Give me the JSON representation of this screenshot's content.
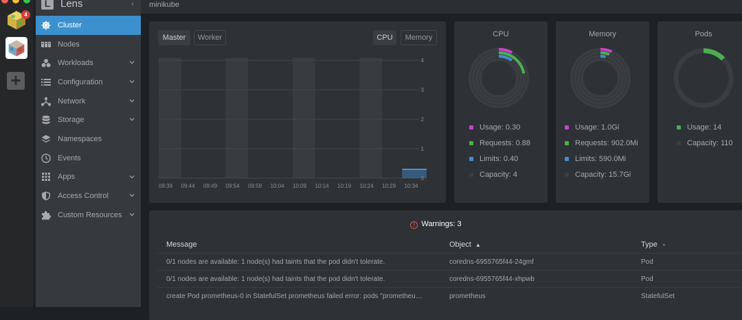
{
  "window": {
    "title": "minikube"
  },
  "colors": {
    "accent": "#3d90ce",
    "usage": "#c644c8",
    "requests": "#4caf50",
    "limits": "#3d8fd1",
    "capacity": "#3a3d41",
    "warning": "#e0584e"
  },
  "app": {
    "name": "Lens",
    "logo_letter": "L"
  },
  "rail": {
    "badge_count": "4"
  },
  "sidebar": {
    "items": [
      {
        "label": "Cluster",
        "icon": "helm-wheel-icon"
      },
      {
        "label": "Nodes",
        "icon": "nodes-icon"
      },
      {
        "label": "Workloads",
        "icon": "workloads-icon"
      },
      {
        "label": "Configuration",
        "icon": "list-icon"
      },
      {
        "label": "Network",
        "icon": "network-icon"
      },
      {
        "label": "Storage",
        "icon": "database-icon"
      },
      {
        "label": "Namespaces",
        "icon": "layers-icon"
      },
      {
        "label": "Events",
        "icon": "clock-icon"
      },
      {
        "label": "Apps",
        "icon": "apps-grid-icon"
      },
      {
        "label": "Access Control",
        "icon": "shield-icon"
      },
      {
        "label": "Custom Resources",
        "icon": "puzzle-icon"
      }
    ]
  },
  "chart_panel": {
    "node_tabs": [
      "Master",
      "Worker"
    ],
    "metric_tabs": [
      "CPU",
      "Memory"
    ]
  },
  "chart_data": {
    "type": "area",
    "x": [
      "09:39",
      "09:44",
      "09:49",
      "09:54",
      "09:59",
      "10:04",
      "10:09",
      "10:14",
      "10:19",
      "10:24",
      "10:29",
      "10:34"
    ],
    "yticks": [
      "0",
      "1",
      "2",
      "3",
      "4"
    ],
    "ylim": [
      0,
      4
    ],
    "series": [
      {
        "points": [
          [
            10.9,
            0.3
          ],
          [
            12.3,
            0.3
          ]
        ]
      }
    ]
  },
  "metrics": {
    "cpu": {
      "title": "CPU",
      "usage": "Usage: 0.30",
      "requests": "Requests: 0.88",
      "limits": "Limits: 0.40",
      "capacity": "Capacity: 4",
      "fractions": {
        "usage": 0.075,
        "requests": 0.22,
        "limits": 0.1
      }
    },
    "memory": {
      "title": "Memory",
      "usage": "Usage: 1.0Gi",
      "requests": "Requests: 902.0Mi",
      "limits": "Limits: 590.0Mi",
      "fractions": {
        "usage": 0.064,
        "requests": 0.056,
        "limits": 0.037
      },
      "capacity": "Capacity: 15.7Gi"
    },
    "pods": {
      "title": "Pods",
      "usage": "Usage: 14",
      "capacity": "Capacity: 110",
      "fractions": {
        "usage": 0.127
      }
    }
  },
  "warnings": {
    "title": "Warnings: 3",
    "columns": {
      "message": "Message",
      "object": "Object",
      "type": "Type"
    },
    "rows": [
      {
        "message": "0/1 nodes are available: 1 node(s) had taints that the pod didn't tolerate.",
        "object": "coredns-6955765f44-24gmf",
        "type": "Pod"
      },
      {
        "message": "0/1 nodes are available: 1 node(s) had taints that the pod didn't tolerate.",
        "object": "coredns-6955765f44-xhpwb",
        "type": "Pod"
      },
      {
        "message": "create Pod prometheus-0 in StatefulSet prometheus failed error: pods \"prometheu…",
        "object": "prometheus",
        "type": "StatefulSet"
      }
    ]
  }
}
